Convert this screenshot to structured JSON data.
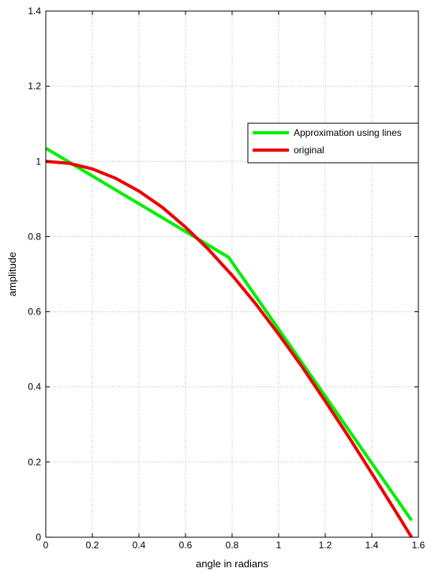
{
  "chart_data": {
    "type": "line",
    "title": "",
    "xlabel": "angle in radians",
    "ylabel": "amplitude",
    "xlim": [
      0,
      1.6
    ],
    "ylim": [
      0,
      1.4
    ],
    "xticks": [
      0,
      0.2,
      0.4,
      0.6,
      0.8,
      1,
      1.2,
      1.4,
      1.6
    ],
    "yticks": [
      0,
      0.2,
      0.4,
      0.6,
      0.8,
      1,
      1.2,
      1.4
    ],
    "xtick_labels": [
      "0",
      "0.2",
      "0.4",
      "0.6",
      "0.8",
      "1",
      "1.2",
      "1.4",
      "1.6"
    ],
    "ytick_labels": [
      "0",
      "0.2",
      "0.4",
      "0.6",
      "0.8",
      "1",
      "1.2",
      "1.4"
    ],
    "grid": true,
    "legend_position": "upper-right",
    "series": [
      {
        "name": "Approximation using lines",
        "color": "#00ee00",
        "x": [
          0,
          0.785,
          1.571
        ],
        "y": [
          1.035,
          0.745,
          0.045
        ]
      },
      {
        "name": "original",
        "color": "#ee0000",
        "x": [
          0,
          0.1,
          0.2,
          0.3,
          0.4,
          0.5,
          0.6,
          0.7,
          0.785,
          0.8,
          0.9,
          1.0,
          1.1,
          1.2,
          1.3,
          1.4,
          1.5,
          1.571
        ],
        "y": [
          1.0,
          0.995,
          0.98,
          0.955,
          0.921,
          0.878,
          0.825,
          0.765,
          0.707,
          0.697,
          0.622,
          0.54,
          0.454,
          0.362,
          0.268,
          0.17,
          0.071,
          0.0
        ]
      }
    ]
  }
}
